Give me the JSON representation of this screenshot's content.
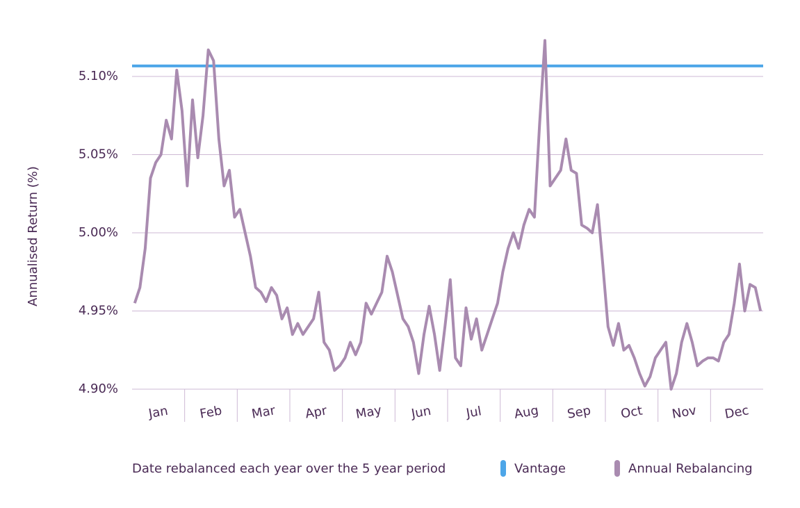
{
  "chart_data": {
    "type": "line",
    "y_label": "Annualised Return (%)",
    "x_label": "Date rebalanced each year over the 5 year period",
    "categories": [
      null,
      null,
      null,
      null,
      null,
      "Jan",
      null,
      null,
      null,
      null,
      null,
      null,
      null,
      null,
      null,
      "Feb",
      null,
      null,
      null,
      null,
      null,
      null,
      null,
      null,
      null,
      "Mar",
      null,
      null,
      null,
      null,
      null,
      null,
      null,
      null,
      null,
      "Apr",
      null,
      null,
      null,
      null,
      null,
      null,
      null,
      null,
      null,
      "May",
      null,
      null,
      null,
      null,
      null,
      null,
      null,
      null,
      null,
      "Jun",
      null,
      null,
      null,
      null,
      null,
      null,
      null,
      null,
      null,
      "Jul",
      null,
      null,
      null,
      null,
      null,
      null,
      null,
      null,
      null,
      "Aug",
      null,
      null,
      null,
      null,
      null,
      null,
      null,
      null,
      null,
      "Sep",
      null,
      null,
      null,
      null,
      null,
      null,
      null,
      null,
      null,
      "Oct",
      null,
      null,
      null,
      null,
      null,
      null,
      null,
      null,
      null,
      "Nov",
      null,
      null,
      null,
      null,
      null,
      null,
      null,
      null,
      null,
      "Dec",
      null,
      null,
      null,
      null
    ],
    "series": [
      {
        "name": "Vantage",
        "color": "#4da6e8",
        "value": 5.1067
      },
      {
        "name": "Annual Rebalancing",
        "color": "#a98bb0",
        "values": [
          4.955,
          4.965,
          4.99,
          5.035,
          5.045,
          5.05,
          5.072,
          5.06,
          5.104,
          5.078,
          5.03,
          5.085,
          5.048,
          5.075,
          5.117,
          5.11,
          5.06,
          5.03,
          5.04,
          5.01,
          5.015,
          5.0,
          4.985,
          4.965,
          4.962,
          4.956,
          4.965,
          4.96,
          4.945,
          4.952,
          4.935,
          4.942,
          4.935,
          4.94,
          4.945,
          4.962,
          4.93,
          4.925,
          4.912,
          4.915,
          4.92,
          4.93,
          4.922,
          4.93,
          4.955,
          4.948,
          4.955,
          4.962,
          4.985,
          4.975,
          4.96,
          4.945,
          4.94,
          4.93,
          4.91,
          4.935,
          4.953,
          4.935,
          4.912,
          4.94,
          4.97,
          4.92,
          4.915,
          4.952,
          4.932,
          4.945,
          4.925,
          4.935,
          4.945,
          4.955,
          4.975,
          4.99,
          5.0,
          4.99,
          5.005,
          5.015,
          5.01,
          5.07,
          5.123,
          5.03,
          5.035,
          5.04,
          5.06,
          5.04,
          5.038,
          5.005,
          5.003,
          5.0,
          5.018,
          4.98,
          4.94,
          4.928,
          4.942,
          4.925,
          4.928,
          4.92,
          4.91,
          4.902,
          4.908,
          4.92,
          4.925,
          4.93,
          4.9,
          4.91,
          4.93,
          4.942,
          4.93,
          4.915,
          4.918,
          4.92,
          4.92,
          4.918,
          4.93,
          4.935,
          4.955,
          4.98,
          4.95,
          4.967,
          4.965,
          4.95
        ]
      }
    ],
    "ylim": [
      4.9,
      5.125
    ],
    "yticks": [
      {
        "value": 4.9,
        "label": "4.90%"
      },
      {
        "value": 4.95,
        "label": "4.95%"
      },
      {
        "value": 5.0,
        "label": "5.00%"
      },
      {
        "value": 5.05,
        "label": "5.05%"
      },
      {
        "value": 5.1,
        "label": "5.10%"
      }
    ],
    "grid": true
  }
}
